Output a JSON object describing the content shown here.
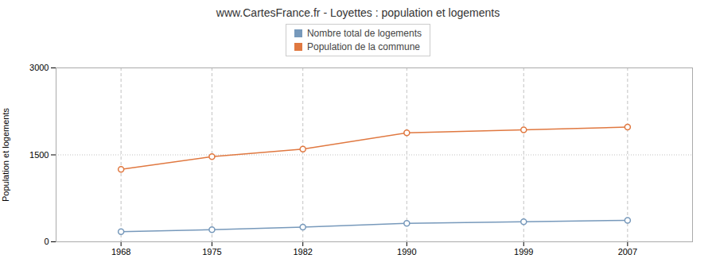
{
  "chart_data": {
    "type": "line",
    "title": "www.CartesFrance.fr - Loyettes : population et logements",
    "ylabel": "Population et logements",
    "x": [
      1968,
      1975,
      1982,
      1990,
      1999,
      2007
    ],
    "series": [
      {
        "name": "Nombre total de logements",
        "color": "#7799bb",
        "marker": "circle",
        "line_style": "solid",
        "values": [
          175,
          210,
          255,
          320,
          345,
          370
        ]
      },
      {
        "name": "Population de la commune",
        "color": "#e07840",
        "marker": "circle",
        "line_style": "solid",
        "values": [
          1250,
          1470,
          1600,
          1880,
          1930,
          1980
        ]
      }
    ],
    "xlim": [
      1963,
      2012
    ],
    "xticks": [
      1968,
      1975,
      1982,
      1990,
      1999,
      2007
    ],
    "ylim": [
      0,
      3000
    ],
    "yticks": [
      0,
      1500,
      3000
    ],
    "grid": true,
    "legend": "top"
  }
}
